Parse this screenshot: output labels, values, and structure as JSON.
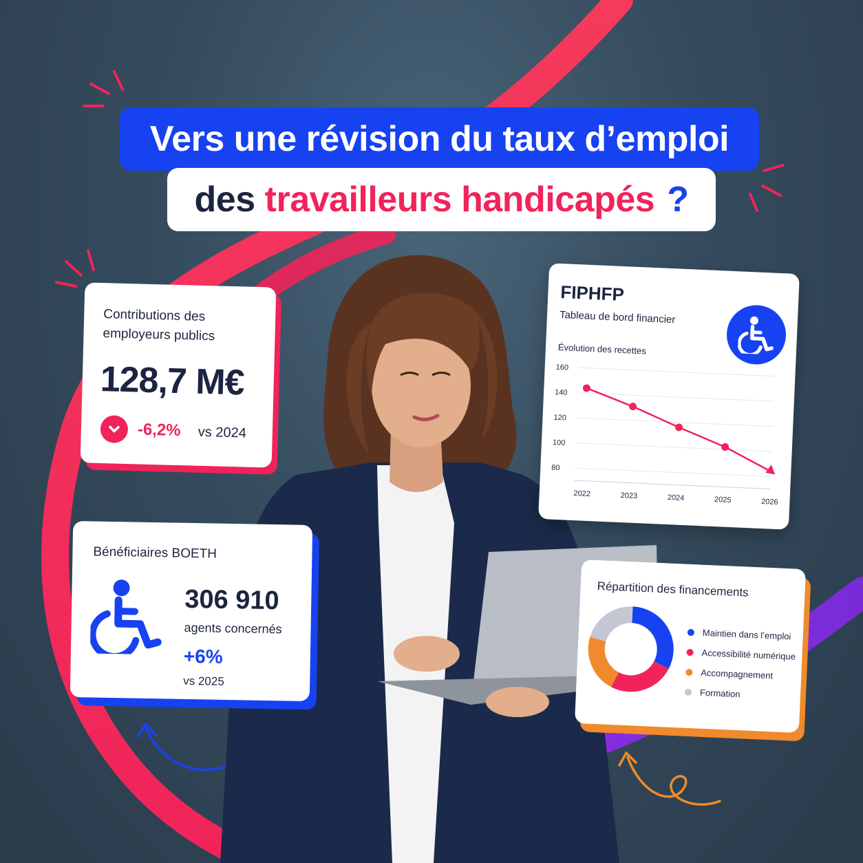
{
  "title": {
    "line1": "Vers une révision du taux d’emploi",
    "line2_part1": "des",
    "line2_highlight": "travailleurs handicapés",
    "line2_end": "?"
  },
  "contributions_card": {
    "label": "Contributions des employeurs publics",
    "value": "128,7 M€",
    "delta": "-6,2%",
    "comparison": "vs 2024",
    "trend_icon": "chevron-down-icon"
  },
  "boeth_card": {
    "label": "Bénéficiaires BOETH",
    "value": "306 910",
    "sub": "agents concernés",
    "delta": "+6%",
    "comparison": "vs 2025",
    "icon": "wheelchair-icon"
  },
  "fiphfp_card": {
    "title": "FIPHFP",
    "subtitle": "Tableau de bord financier",
    "icon": "wheelchair-icon",
    "chart_title": "Évolution des recettes"
  },
  "repartition_card": {
    "title": "Répartition des financements",
    "legend": [
      {
        "label": "Maintien dans l’emploi",
        "color": "#1742f2"
      },
      {
        "label": "Accessibilité numérique",
        "color": "#f0245a"
      },
      {
        "label": "Accompagnement",
        "color": "#f08a2c"
      },
      {
        "label": "Formation",
        "color": "#c3c8d4"
      }
    ]
  },
  "chart_data": [
    {
      "type": "line",
      "title": "Évolution des recettes",
      "x": [
        "2022",
        "2023",
        "2024",
        "2025",
        "2026"
      ],
      "y_ticks": [
        160,
        140,
        120,
        100,
        80
      ],
      "ylim": [
        80,
        160
      ],
      "series": [
        {
          "values": [
            144,
            131,
            116,
            102,
            84
          ],
          "color": "#f0245a"
        }
      ],
      "grid": true,
      "last_point_marker": "arrow"
    },
    {
      "type": "pie",
      "title": "Répartition des financements",
      "labels": [
        "Maintien dans l’emploi",
        "Accessibilité numérique",
        "Accompagnement",
        "Formation"
      ],
      "values": [
        32,
        25,
        22,
        21
      ],
      "colors": [
        "#1742f2",
        "#f0245a",
        "#f08a2c",
        "#c3c8d4"
      ],
      "donut": true
    }
  ],
  "colors": {
    "brand_blue": "#1742f2",
    "accent_pink": "#f0245a",
    "accent_orange": "#f08a2c",
    "text_dark": "#1c2440",
    "background": "#354b5d"
  }
}
